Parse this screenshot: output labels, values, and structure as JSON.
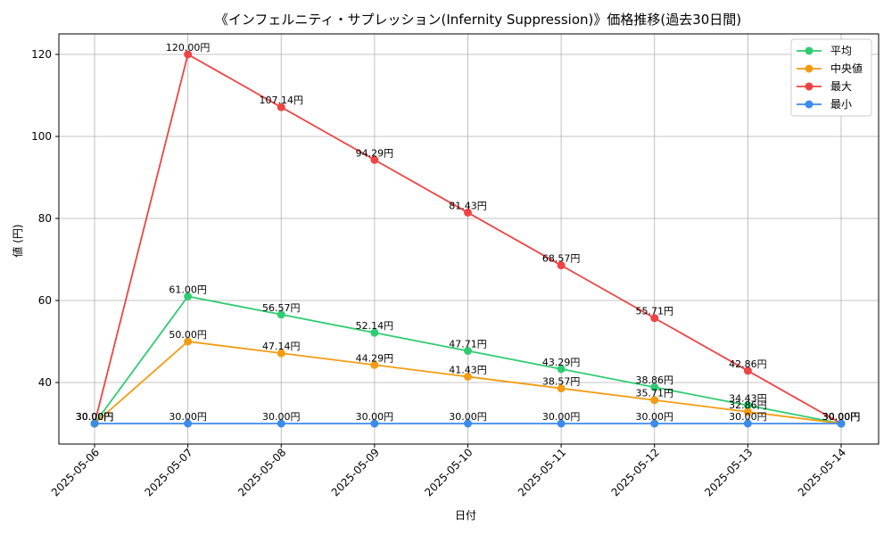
{
  "chart_data": {
    "type": "line",
    "title": "《インフェルニティ・サプレッション(Infernity Suppression)》価格推移(過去30日間)",
    "xlabel": "日付",
    "ylabel": "値 (円)",
    "x": [
      "2025-05-06",
      "2025-05-07",
      "2025-05-08",
      "2025-05-09",
      "2025-05-10",
      "2025-05-11",
      "2025-05-12",
      "2025-05-13",
      "2025-05-14"
    ],
    "ylim": [
      25,
      125
    ],
    "yticks": [
      40,
      60,
      80,
      100,
      120
    ],
    "grid": true,
    "legend_position": "top-right",
    "label_suffix": "円",
    "series": [
      {
        "name": "平均",
        "color": "#2ecc71",
        "values": [
          30.0,
          61.0,
          56.57,
          52.14,
          47.71,
          43.29,
          38.86,
          34.43,
          30.0
        ]
      },
      {
        "name": "中央値",
        "color": "#f39c12",
        "values": [
          30.0,
          50.0,
          47.14,
          44.29,
          41.43,
          38.57,
          35.71,
          32.86,
          30.0
        ]
      },
      {
        "name": "最大",
        "color": "#ef4444",
        "values": [
          30.0,
          120.0,
          107.14,
          94.29,
          81.43,
          68.57,
          55.71,
          42.86,
          30.0
        ]
      },
      {
        "name": "最小",
        "color": "#3b8beb",
        "values": [
          30.0,
          30.0,
          30.0,
          30.0,
          30.0,
          30.0,
          30.0,
          30.0,
          30.0
        ]
      }
    ]
  }
}
